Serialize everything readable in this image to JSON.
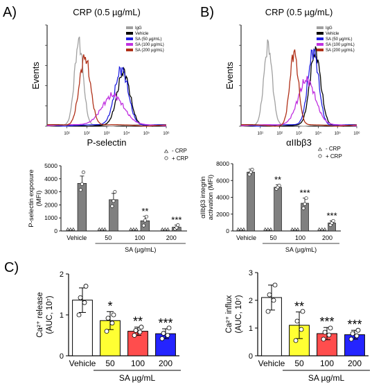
{
  "panel_labels": [
    "A)",
    "B)",
    "C)"
  ],
  "chart_data": [
    {
      "id": "A_histogram",
      "type": "line",
      "title": "CRP (0.5 µg/mL)",
      "xlabel": "P-selectin",
      "ylabel": "Events",
      "x_scale": "log",
      "xlim": [
        1,
        1000000
      ],
      "x_ticks": [
        "10¹",
        "10²",
        "10³",
        "10⁴",
        "10⁵",
        "10⁶"
      ],
      "legend": [
        "IgG",
        "Vehicle",
        "SA (50 µg/mL)",
        "SA (100 µg/mL)",
        "SA (200 µg/mL)"
      ],
      "legend_position": "top-right",
      "series": [
        {
          "name": "IgG",
          "color": "#a0a0a0",
          "peak_log": 1.6,
          "width": 0.22,
          "height": 0.82
        },
        {
          "name": "Vehicle",
          "color": "#000000",
          "peak_log": 3.85,
          "width": 0.32,
          "height": 0.52
        },
        {
          "name": "SA (50 µg/mL)",
          "color": "#2020e0",
          "peak_log": 3.75,
          "width": 0.34,
          "height": 0.56
        },
        {
          "name": "SA (100 µg/mL)",
          "color": "#c030e0",
          "peak_log": 3.3,
          "width": 0.55,
          "height": 0.3
        },
        {
          "name": "SA (200 µg/mL)",
          "color": "#b03018",
          "peak_log": 1.9,
          "width": 0.28,
          "height": 0.68
        }
      ]
    },
    {
      "id": "B_histogram",
      "type": "line",
      "title": "CRP (0.5 µg/mL)",
      "xlabel": "αIIbβ3",
      "ylabel": "Events",
      "x_scale": "log",
      "xlim": [
        1,
        1000000
      ],
      "x_ticks": [
        "10¹",
        "10²",
        "10³",
        "10⁴",
        "10⁵",
        "10⁶"
      ],
      "legend": [
        "IgG",
        "Vehicle",
        "SA (50 µg/mL)",
        "SA (100 µg/mL)",
        "SA (200 µg/mL)"
      ],
      "legend_position": "top-right",
      "series": [
        {
          "name": "IgG",
          "color": "#a0a0a0",
          "peak_log": 1.4,
          "width": 0.22,
          "height": 0.78
        },
        {
          "name": "Vehicle",
          "color": "#000000",
          "peak_log": 3.85,
          "width": 0.28,
          "height": 0.72
        },
        {
          "name": "SA (50 µg/mL)",
          "color": "#2020e0",
          "peak_log": 3.75,
          "width": 0.28,
          "height": 0.74
        },
        {
          "name": "SA (100 µg/mL)",
          "color": "#c030e0",
          "peak_log": 3.4,
          "width": 0.45,
          "height": 0.45
        },
        {
          "name": "SA (200 µg/mL)",
          "color": "#b03018",
          "peak_log": 2.75,
          "width": 0.22,
          "height": 0.72
        }
      ]
    },
    {
      "id": "A_bar",
      "type": "bar",
      "ylabel": "P-selectin exposure\n(MFI)",
      "xlabel": "SA (µg/mL)",
      "ylim": [
        0,
        5000
      ],
      "y_ticks": [
        "0",
        "1000",
        "2000",
        "3000",
        "4000",
        "5000"
      ],
      "categories": [
        "Vehicle",
        "50",
        "100",
        "200"
      ],
      "legend": [
        "- CRP",
        "+ CRP"
      ],
      "legend_position": "top-right",
      "series": [
        {
          "name": "- CRP",
          "values": [
            0,
            0,
            0,
            0
          ],
          "errors": [
            0,
            0,
            0,
            0
          ]
        },
        {
          "name": "+ CRP",
          "values": [
            3650,
            2400,
            780,
            290
          ],
          "errors": [
            560,
            480,
            340,
            170
          ]
        }
      ],
      "points": [
        [
          [
            3150,
            3600,
            4500
          ],
          [
            1900,
            2300,
            3000
          ],
          [
            420,
            800,
            1100
          ],
          [
            150,
            250,
            450
          ]
        ]
      ],
      "significance": [
        "",
        "",
        "**",
        "***"
      ]
    },
    {
      "id": "B_bar",
      "type": "bar",
      "ylabel": "αIIbβ3 integrin\nactivation (MFI)",
      "xlabel": "SA (µg/mL)",
      "ylim": [
        0,
        8000
      ],
      "y_ticks": [
        "0",
        "2000",
        "4000",
        "6000",
        "8000"
      ],
      "categories": [
        "Vehicle",
        "50",
        "100",
        "200"
      ],
      "legend": [
        "- CRP",
        "+ CRP"
      ],
      "legend_position": "top-right",
      "series": [
        {
          "name": "- CRP",
          "values": [
            0,
            0,
            0,
            0
          ],
          "errors": [
            0,
            0,
            0,
            0
          ]
        },
        {
          "name": "+ CRP",
          "values": [
            7000,
            5200,
            3300,
            950
          ],
          "errors": [
            350,
            300,
            600,
            250
          ]
        }
      ],
      "points": [
        [
          [
            6700,
            7000,
            7300
          ],
          [
            5000,
            5200,
            5400
          ],
          [
            2700,
            3200,
            3900
          ],
          [
            700,
            950,
            1200
          ]
        ]
      ],
      "significance": [
        "",
        "**",
        "***",
        "***"
      ]
    },
    {
      "id": "C_release",
      "type": "bar",
      "ylabel": "Ca²⁺ release\n(AUC, 10⁷)",
      "xlabel": "SA µg/mL",
      "ylim": [
        0,
        2
      ],
      "y_ticks": [
        "0",
        "1",
        "2"
      ],
      "categories": [
        "Vehicle",
        "50",
        "100",
        "200"
      ],
      "colors": [
        "#ffffff",
        "#ffff33",
        "#ff4d4d",
        "#2424ff"
      ],
      "values": [
        1.36,
        0.86,
        0.6,
        0.54
      ],
      "errors": [
        0.3,
        0.22,
        0.1,
        0.12
      ],
      "points": [
        [
          1.0,
          1.3,
          1.42,
          1.7
        ],
        [
          0.6,
          0.8,
          0.92,
          1.0
        ],
        [
          0.5,
          0.58,
          0.62,
          0.7
        ],
        [
          0.42,
          0.5,
          0.55,
          0.68
        ]
      ],
      "significance": [
        "",
        "*",
        "**",
        "***"
      ]
    },
    {
      "id": "C_influx",
      "type": "bar",
      "ylabel": "Ca²⁺ influx\n(AUC, 10⁷)",
      "xlabel": "SA µg/mL",
      "ylim": [
        0,
        3
      ],
      "y_ticks": [
        "0",
        "1",
        "2",
        "3"
      ],
      "categories": [
        "Vehicle",
        "50",
        "100",
        "200"
      ],
      "colors": [
        "#ffffff",
        "#ffff33",
        "#ff4d4d",
        "#2424ff"
      ],
      "values": [
        2.1,
        1.1,
        0.8,
        0.76
      ],
      "errors": [
        0.45,
        0.48,
        0.22,
        0.16
      ],
      "points": [
        [
          1.6,
          2.0,
          2.2,
          2.55
        ],
        [
          0.55,
          0.95,
          1.25,
          1.6
        ],
        [
          0.6,
          0.75,
          0.85,
          1.0
        ],
        [
          0.6,
          0.72,
          0.8,
          0.92
        ]
      ],
      "significance": [
        "",
        "**",
        "***",
        "***"
      ]
    }
  ]
}
